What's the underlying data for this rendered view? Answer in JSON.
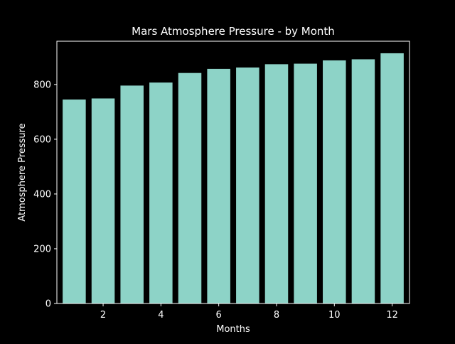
{
  "chart_data": {
    "type": "bar",
    "title": "Mars Atmosphere Pressure - by Month",
    "xlabel": "Months",
    "ylabel": "Atmosphere Pressure",
    "categories": [
      1,
      2,
      3,
      4,
      5,
      6,
      7,
      8,
      9,
      10,
      11,
      12
    ],
    "values": [
      745,
      749,
      796,
      807,
      842,
      857,
      862,
      874,
      876,
      888,
      892,
      914
    ],
    "xlim": [
      0.4,
      12.6
    ],
    "ylim": [
      0,
      958
    ],
    "xticks": [
      2,
      4,
      6,
      8,
      10,
      12
    ],
    "yticks": [
      0,
      200,
      400,
      600,
      800
    ],
    "grid": false,
    "legend": "none",
    "colors": {
      "background": "#000000",
      "bar": "#8dd3c7",
      "axis": "#ffffff",
      "text": "#ffffff"
    }
  }
}
